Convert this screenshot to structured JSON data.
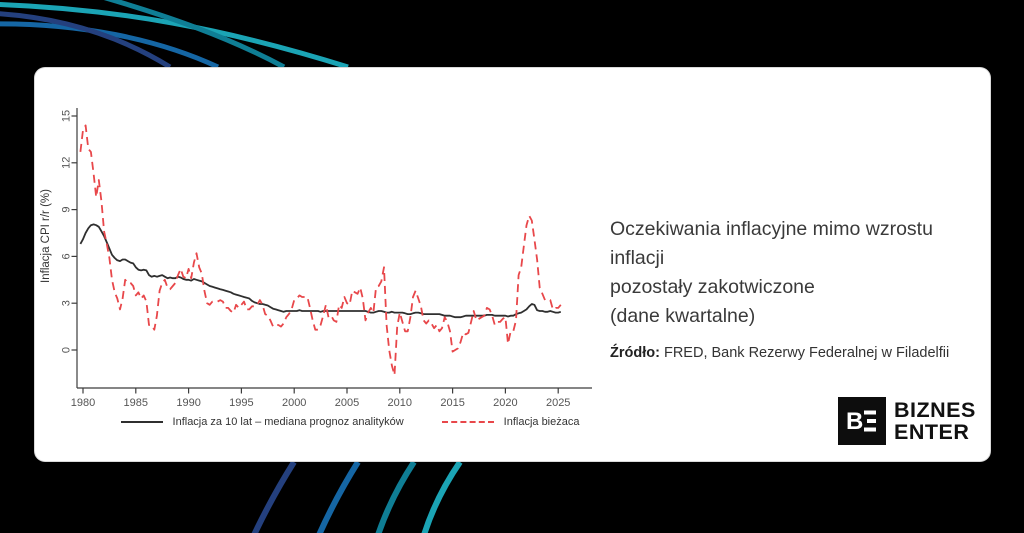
{
  "page": {
    "background": "#000000",
    "card_color": "#ffffff"
  },
  "colors": {
    "arc_navy": "#24407e",
    "arc_blue": "#1566a4",
    "arc_teal_dark": "#0f7e95",
    "arc_teal": "#1ba4b5",
    "series_black": "#2f2f2f",
    "series_red": "#e8474a"
  },
  "title_block": {
    "line1": "Oczekiwania inflacyjne mimo wzrostu inflacji",
    "line2": "pozostały zakotwiczone",
    "line3": "(dane kwartalne)"
  },
  "source": {
    "label": "Źródło:",
    "text": " FRED, Bank Rezerwy Federalnej w Filadelfii"
  },
  "logo": {
    "monogram": "BE",
    "line1": "BIZNES",
    "line2": "ENTER"
  },
  "chart_data": {
    "type": "line",
    "title": "",
    "xlabel": "",
    "ylabel": "Inflacja CPI r/r (%)",
    "grid": false,
    "legend_position": "bottom",
    "x_start": 1979.75,
    "x_step": 0.25,
    "xlim": [
      1979.3,
      2028.2
    ],
    "ylim": [
      -2.4,
      15.5
    ],
    "x_ticks": [
      1980,
      1985,
      1990,
      1995,
      2000,
      2005,
      2010,
      2015,
      2020,
      2025
    ],
    "y_ticks": [
      0,
      3,
      6,
      9,
      12,
      15
    ],
    "series": [
      {
        "name": "Inflacja za 10 lat – mediana prognoz analityków",
        "color": "#2f2f2f",
        "style": "solid",
        "values": [
          6.8,
          7.1,
          7.5,
          7.8,
          8.0,
          8.05,
          8.0,
          7.9,
          7.6,
          7.3,
          6.9,
          6.5,
          6.1,
          5.9,
          5.75,
          5.7,
          5.8,
          5.8,
          5.7,
          5.6,
          5.55,
          5.3,
          5.15,
          5.1,
          5.15,
          5.1,
          4.8,
          4.7,
          4.75,
          4.7,
          4.75,
          4.8,
          4.7,
          4.6,
          4.65,
          4.6,
          4.6,
          4.7,
          4.65,
          4.55,
          4.5,
          4.5,
          4.45,
          4.55,
          4.5,
          4.45,
          4.4,
          4.3,
          4.2,
          4.1,
          4.05,
          4.0,
          3.95,
          3.9,
          3.85,
          3.8,
          3.75,
          3.7,
          3.6,
          3.55,
          3.5,
          3.45,
          3.4,
          3.35,
          3.3,
          3.15,
          3.05,
          3.0,
          2.95,
          2.95,
          2.9,
          2.85,
          2.75,
          2.65,
          2.6,
          2.55,
          2.5,
          2.45,
          2.5,
          2.5,
          2.5,
          2.5,
          2.5,
          2.55,
          2.5,
          2.5,
          2.5,
          2.5,
          2.5,
          2.5,
          2.5,
          2.45,
          2.5,
          2.5,
          2.5,
          2.5,
          2.5,
          2.5,
          2.5,
          2.5,
          2.5,
          2.5,
          2.5,
          2.5,
          2.5,
          2.5,
          2.5,
          2.5,
          2.5,
          2.45,
          2.4,
          2.4,
          2.45,
          2.5,
          2.5,
          2.45,
          2.4,
          2.4,
          2.45,
          2.4,
          2.4,
          2.4,
          2.4,
          2.35,
          2.3,
          2.3,
          2.35,
          2.4,
          2.4,
          2.35,
          2.3,
          2.3,
          2.3,
          2.3,
          2.3,
          2.3,
          2.3,
          2.25,
          2.2,
          2.2,
          2.2,
          2.15,
          2.1,
          2.1,
          2.1,
          2.15,
          2.2,
          2.2,
          2.2,
          2.2,
          2.2,
          2.2,
          2.2,
          2.2,
          2.25,
          2.25,
          2.25,
          2.2,
          2.2,
          2.2,
          2.2,
          2.2,
          2.15,
          2.2,
          2.2,
          2.3,
          2.35,
          2.4,
          2.5,
          2.6,
          2.8,
          2.95,
          2.9,
          2.55,
          2.5,
          2.5,
          2.45,
          2.45,
          2.5,
          2.45,
          2.4,
          2.4,
          2.45
        ]
      },
      {
        "name": "Inflacja bieżaca",
        "color": "#e8474a",
        "style": "dashed",
        "values": [
          12.7,
          14.1,
          14.4,
          12.9,
          12.7,
          11.3,
          9.8,
          10.9,
          9.5,
          7.6,
          6.8,
          5.9,
          4.5,
          3.7,
          3.3,
          2.6,
          3.3,
          4.5,
          4.3,
          4.3,
          4.1,
          3.5,
          3.7,
          3.3,
          3.5,
          3.1,
          1.6,
          1.6,
          1.3,
          2.2,
          3.8,
          4.3,
          4.5,
          4.0,
          3.9,
          4.1,
          4.3,
          4.8,
          5.2,
          4.7,
          4.6,
          5.2,
          4.6,
          5.6,
          6.2,
          5.3,
          4.9,
          3.8,
          3.0,
          2.9,
          3.1,
          3.1,
          3.1,
          3.2,
          3.1,
          2.7,
          2.7,
          2.5,
          2.4,
          2.9,
          2.7,
          2.9,
          3.1,
          2.6,
          2.6,
          2.8,
          2.8,
          2.9,
          3.2,
          2.9,
          2.3,
          2.2,
          1.9,
          1.5,
          1.6,
          1.6,
          1.5,
          1.7,
          2.1,
          2.3,
          2.6,
          3.2,
          3.3,
          3.5,
          3.4,
          3.4,
          3.4,
          2.7,
          1.9,
          1.3,
          1.3,
          1.6,
          2.2,
          2.9,
          2.1,
          2.2,
          1.9,
          1.8,
          2.9,
          2.7,
          3.4,
          3.0,
          2.9,
          3.8,
          3.7,
          3.6,
          4.0,
          3.3,
          1.9,
          2.4,
          2.7,
          2.4,
          4.0,
          4.1,
          4.4,
          5.3,
          1.6,
          0.0,
          -1.0,
          -1.6,
          1.5,
          2.4,
          1.8,
          1.2,
          1.2,
          2.1,
          3.4,
          3.8,
          3.3,
          2.8,
          1.9,
          1.7,
          1.9,
          1.7,
          1.4,
          1.6,
          1.2,
          1.4,
          2.1,
          1.8,
          1.2,
          -0.1,
          0.0,
          0.1,
          0.5,
          1.1,
          1.0,
          1.1,
          1.8,
          2.5,
          1.9,
          2.0,
          2.1,
          2.2,
          2.7,
          2.6,
          2.2,
          1.6,
          1.8,
          1.8,
          2.0,
          2.1,
          0.4,
          1.2,
          1.2,
          1.9,
          4.8,
          5.3,
          6.7,
          8.0,
          8.6,
          8.3,
          7.1,
          5.8,
          4.0,
          3.6,
          3.2,
          3.2,
          3.2,
          2.6,
          2.7,
          2.7,
          2.9
        ]
      }
    ]
  }
}
